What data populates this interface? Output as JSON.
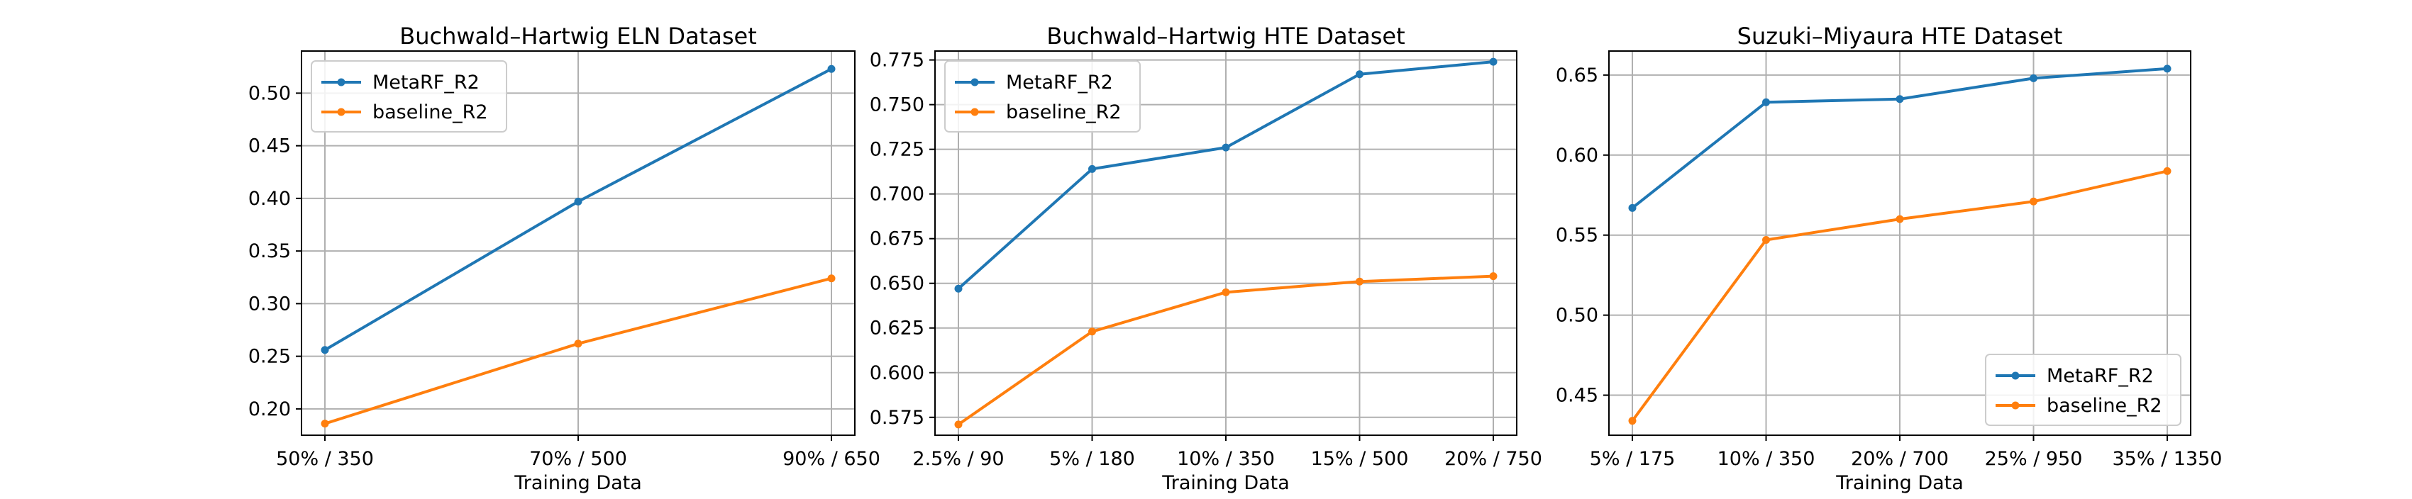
{
  "chart_data": [
    {
      "type": "line",
      "title": "Buchwald–Hartwig ELN Dataset",
      "xlabel": "Training Data",
      "ylabel": "",
      "categories": [
        "50% / 350",
        "70% / 500",
        "90% / 650"
      ],
      "ylim": [
        0.175,
        0.54
      ],
      "yticks": [
        0.2,
        0.25,
        0.3,
        0.35,
        0.4,
        0.45,
        0.5
      ],
      "grid": true,
      "legend_position": "top-left",
      "series": [
        {
          "name": "MetaRF_R2",
          "color": "#1f77b4",
          "values": [
            0.256,
            0.397,
            0.523
          ]
        },
        {
          "name": "baseline_R2",
          "color": "#ff7f0e",
          "values": [
            0.186,
            0.262,
            0.324
          ]
        }
      ]
    },
    {
      "type": "line",
      "title": "Buchwald–Hartwig HTE Dataset",
      "xlabel": "Training Data",
      "ylabel": "",
      "categories": [
        "2.5% / 90",
        "5% / 180",
        "10% / 350",
        "15% / 500",
        "20% / 750"
      ],
      "ylim": [
        0.565,
        0.78
      ],
      "yticks": [
        0.575,
        0.6,
        0.625,
        0.65,
        0.675,
        0.7,
        0.725,
        0.75,
        0.775
      ],
      "grid": true,
      "legend_position": "top-left",
      "series": [
        {
          "name": "MetaRF_R2",
          "color": "#1f77b4",
          "values": [
            0.647,
            0.714,
            0.726,
            0.767,
            0.774
          ]
        },
        {
          "name": "baseline_R2",
          "color": "#ff7f0e",
          "values": [
            0.571,
            0.623,
            0.645,
            0.651,
            0.654
          ]
        }
      ]
    },
    {
      "type": "line",
      "title": "Suzuki–Miyaura HTE Dataset",
      "xlabel": "Training Data",
      "ylabel": "",
      "categories": [
        "5% / 175",
        "10% / 350",
        "20% / 700",
        "25% / 950",
        "35% / 1350"
      ],
      "ylim": [
        0.425,
        0.665
      ],
      "yticks": [
        0.45,
        0.5,
        0.55,
        0.6,
        0.65
      ],
      "grid": true,
      "legend_position": "bottom-right",
      "series": [
        {
          "name": "MetaRF_R2",
          "color": "#1f77b4",
          "values": [
            0.567,
            0.633,
            0.635,
            0.648,
            0.654
          ]
        },
        {
          "name": "baseline_R2",
          "color": "#ff7f0e",
          "values": [
            0.434,
            0.547,
            0.56,
            0.571,
            0.59
          ]
        }
      ]
    }
  ]
}
